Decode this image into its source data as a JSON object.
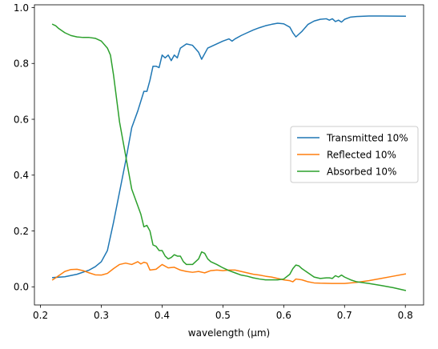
{
  "chart_data": {
    "type": "line",
    "title": "",
    "xlabel": "wavelength (μm)",
    "ylabel": "",
    "xlim": [
      0.19,
      0.83
    ],
    "ylim": [
      -0.065,
      1.01
    ],
    "xticks": [
      0.2,
      0.3,
      0.4,
      0.5,
      0.6,
      0.7,
      0.8
    ],
    "yticks": [
      0.0,
      0.2,
      0.4,
      0.6,
      0.8,
      1.0
    ],
    "grid": false,
    "legend_position": "center-right",
    "series": [
      {
        "name": "Transmitted 10%",
        "color": "#1f77b4",
        "points": [
          [
            0.22,
            0.033
          ],
          [
            0.24,
            0.036
          ],
          [
            0.26,
            0.045
          ],
          [
            0.28,
            0.06
          ],
          [
            0.29,
            0.072
          ],
          [
            0.3,
            0.09
          ],
          [
            0.31,
            0.13
          ],
          [
            0.32,
            0.23
          ],
          [
            0.33,
            0.34
          ],
          [
            0.34,
            0.45
          ],
          [
            0.35,
            0.57
          ],
          [
            0.36,
            0.63
          ],
          [
            0.37,
            0.7
          ],
          [
            0.375,
            0.7
          ],
          [
            0.38,
            0.74
          ],
          [
            0.385,
            0.79
          ],
          [
            0.39,
            0.79
          ],
          [
            0.395,
            0.785
          ],
          [
            0.4,
            0.83
          ],
          [
            0.405,
            0.82
          ],
          [
            0.41,
            0.83
          ],
          [
            0.415,
            0.81
          ],
          [
            0.42,
            0.83
          ],
          [
            0.425,
            0.82
          ],
          [
            0.43,
            0.855
          ],
          [
            0.44,
            0.87
          ],
          [
            0.45,
            0.865
          ],
          [
            0.46,
            0.84
          ],
          [
            0.465,
            0.815
          ],
          [
            0.47,
            0.835
          ],
          [
            0.475,
            0.855
          ],
          [
            0.48,
            0.86
          ],
          [
            0.49,
            0.87
          ],
          [
            0.5,
            0.88
          ],
          [
            0.51,
            0.888
          ],
          [
            0.515,
            0.88
          ],
          [
            0.52,
            0.888
          ],
          [
            0.53,
            0.9
          ],
          [
            0.54,
            0.91
          ],
          [
            0.55,
            0.92
          ],
          [
            0.56,
            0.928
          ],
          [
            0.57,
            0.935
          ],
          [
            0.58,
            0.94
          ],
          [
            0.59,
            0.944
          ],
          [
            0.6,
            0.942
          ],
          [
            0.61,
            0.93
          ],
          [
            0.615,
            0.91
          ],
          [
            0.62,
            0.895
          ],
          [
            0.625,
            0.905
          ],
          [
            0.63,
            0.915
          ],
          [
            0.64,
            0.94
          ],
          [
            0.65,
            0.952
          ],
          [
            0.66,
            0.958
          ],
          [
            0.67,
            0.96
          ],
          [
            0.675,
            0.955
          ],
          [
            0.68,
            0.96
          ],
          [
            0.685,
            0.95
          ],
          [
            0.69,
            0.955
          ],
          [
            0.695,
            0.948
          ],
          [
            0.7,
            0.958
          ],
          [
            0.71,
            0.966
          ],
          [
            0.72,
            0.968
          ],
          [
            0.74,
            0.97
          ],
          [
            0.76,
            0.97
          ],
          [
            0.8,
            0.969
          ]
        ]
      },
      {
        "name": "Reflected 10%",
        "color": "#ff7f0e",
        "points": [
          [
            0.22,
            0.025
          ],
          [
            0.23,
            0.04
          ],
          [
            0.24,
            0.055
          ],
          [
            0.25,
            0.062
          ],
          [
            0.26,
            0.063
          ],
          [
            0.27,
            0.058
          ],
          [
            0.28,
            0.05
          ],
          [
            0.29,
            0.043
          ],
          [
            0.3,
            0.042
          ],
          [
            0.31,
            0.048
          ],
          [
            0.32,
            0.065
          ],
          [
            0.33,
            0.08
          ],
          [
            0.34,
            0.085
          ],
          [
            0.35,
            0.08
          ],
          [
            0.36,
            0.09
          ],
          [
            0.365,
            0.082
          ],
          [
            0.37,
            0.088
          ],
          [
            0.375,
            0.085
          ],
          [
            0.38,
            0.06
          ],
          [
            0.39,
            0.063
          ],
          [
            0.4,
            0.08
          ],
          [
            0.41,
            0.068
          ],
          [
            0.42,
            0.07
          ],
          [
            0.43,
            0.06
          ],
          [
            0.44,
            0.055
          ],
          [
            0.45,
            0.052
          ],
          [
            0.46,
            0.055
          ],
          [
            0.47,
            0.05
          ],
          [
            0.48,
            0.058
          ],
          [
            0.49,
            0.06
          ],
          [
            0.5,
            0.058
          ],
          [
            0.51,
            0.06
          ],
          [
            0.52,
            0.06
          ],
          [
            0.53,
            0.055
          ],
          [
            0.54,
            0.05
          ],
          [
            0.55,
            0.045
          ],
          [
            0.56,
            0.042
          ],
          [
            0.57,
            0.038
          ],
          [
            0.58,
            0.035
          ],
          [
            0.59,
            0.03
          ],
          [
            0.6,
            0.025
          ],
          [
            0.61,
            0.022
          ],
          [
            0.615,
            0.018
          ],
          [
            0.62,
            0.028
          ],
          [
            0.63,
            0.025
          ],
          [
            0.64,
            0.018
          ],
          [
            0.65,
            0.014
          ],
          [
            0.66,
            0.013
          ],
          [
            0.68,
            0.012
          ],
          [
            0.7,
            0.012
          ],
          [
            0.72,
            0.016
          ],
          [
            0.74,
            0.022
          ],
          [
            0.76,
            0.03
          ],
          [
            0.78,
            0.038
          ],
          [
            0.8,
            0.046
          ]
        ]
      },
      {
        "name": "Absorbed 10%",
        "color": "#2ca02c",
        "points": [
          [
            0.22,
            0.94
          ],
          [
            0.225,
            0.935
          ],
          [
            0.23,
            0.925
          ],
          [
            0.24,
            0.91
          ],
          [
            0.25,
            0.9
          ],
          [
            0.26,
            0.895
          ],
          [
            0.27,
            0.893
          ],
          [
            0.28,
            0.893
          ],
          [
            0.29,
            0.89
          ],
          [
            0.3,
            0.88
          ],
          [
            0.31,
            0.855
          ],
          [
            0.315,
            0.83
          ],
          [
            0.32,
            0.76
          ],
          [
            0.33,
            0.59
          ],
          [
            0.34,
            0.47
          ],
          [
            0.35,
            0.35
          ],
          [
            0.36,
            0.29
          ],
          [
            0.365,
            0.26
          ],
          [
            0.37,
            0.215
          ],
          [
            0.375,
            0.22
          ],
          [
            0.38,
            0.2
          ],
          [
            0.385,
            0.15
          ],
          [
            0.39,
            0.145
          ],
          [
            0.395,
            0.13
          ],
          [
            0.4,
            0.13
          ],
          [
            0.405,
            0.11
          ],
          [
            0.41,
            0.1
          ],
          [
            0.415,
            0.105
          ],
          [
            0.42,
            0.115
          ],
          [
            0.425,
            0.11
          ],
          [
            0.43,
            0.11
          ],
          [
            0.435,
            0.09
          ],
          [
            0.44,
            0.08
          ],
          [
            0.45,
            0.08
          ],
          [
            0.46,
            0.1
          ],
          [
            0.465,
            0.125
          ],
          [
            0.47,
            0.12
          ],
          [
            0.475,
            0.1
          ],
          [
            0.48,
            0.09
          ],
          [
            0.49,
            0.08
          ],
          [
            0.5,
            0.068
          ],
          [
            0.51,
            0.058
          ],
          [
            0.52,
            0.05
          ],
          [
            0.53,
            0.042
          ],
          [
            0.54,
            0.038
          ],
          [
            0.55,
            0.032
          ],
          [
            0.56,
            0.028
          ],
          [
            0.57,
            0.025
          ],
          [
            0.58,
            0.025
          ],
          [
            0.59,
            0.025
          ],
          [
            0.6,
            0.028
          ],
          [
            0.61,
            0.045
          ],
          [
            0.615,
            0.065
          ],
          [
            0.62,
            0.078
          ],
          [
            0.625,
            0.075
          ],
          [
            0.63,
            0.065
          ],
          [
            0.64,
            0.05
          ],
          [
            0.65,
            0.035
          ],
          [
            0.66,
            0.03
          ],
          [
            0.67,
            0.032
          ],
          [
            0.675,
            0.032
          ],
          [
            0.68,
            0.03
          ],
          [
            0.685,
            0.04
          ],
          [
            0.69,
            0.035
          ],
          [
            0.695,
            0.042
          ],
          [
            0.7,
            0.035
          ],
          [
            0.71,
            0.025
          ],
          [
            0.72,
            0.018
          ],
          [
            0.74,
            0.012
          ],
          [
            0.76,
            0.005
          ],
          [
            0.78,
            -0.003
          ],
          [
            0.8,
            -0.013
          ]
        ]
      }
    ]
  }
}
